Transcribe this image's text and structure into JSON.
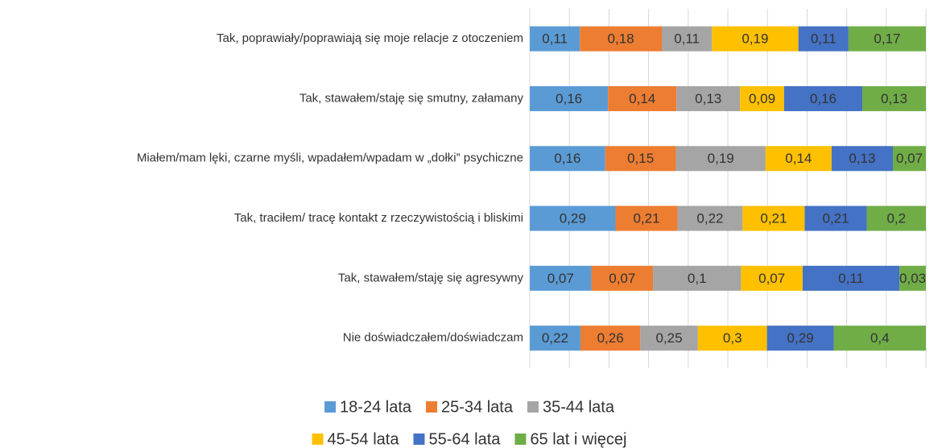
{
  "chart_data": {
    "type": "bar",
    "orientation": "horizontal",
    "stacking": "percent",
    "grid": true,
    "categories": [
      "Tak, poprawiały/poprawiają się moje relacje z otoczeniem",
      "Tak, stawałem/staję się smutny, załamany",
      "Miałem/mam lęki, czarne myśli, wpadałem/wpadam w „dołki” psychiczne",
      "Tak, traciłem/ tracę kontakt z rzeczywistością i bliskimi",
      "Tak, stawałem/staję się agresywny",
      "Nie doświadczałem/doświadczam"
    ],
    "series": [
      {
        "name": "18-24 lata",
        "color": "#5b9bd5",
        "values": [
          0.11,
          0.16,
          0.16,
          0.29,
          0.07,
          0.22
        ],
        "value_labels": [
          "0,11",
          "0,16",
          "0,16",
          "0,29",
          "0,07",
          "0,22"
        ]
      },
      {
        "name": "25-34 lata",
        "color": "#ed7d31",
        "values": [
          0.18,
          0.14,
          0.15,
          0.21,
          0.07,
          0.26
        ],
        "value_labels": [
          "0,18",
          "0,14",
          "0,15",
          "0,21",
          "0,07",
          "0,26"
        ]
      },
      {
        "name": "35-44 lata",
        "color": "#a5a5a5",
        "values": [
          0.11,
          0.13,
          0.19,
          0.22,
          0.1,
          0.25
        ],
        "value_labels": [
          "0,11",
          "0,13",
          "0,19",
          "0,22",
          "0,1",
          "0,25"
        ]
      },
      {
        "name": "45-54 lata",
        "color": "#ffc000",
        "values": [
          0.19,
          0.09,
          0.14,
          0.21,
          0.07,
          0.3
        ],
        "value_labels": [
          "0,19",
          "0,09",
          "0,14",
          "0,21",
          "0,07",
          "0,3"
        ]
      },
      {
        "name": "55-64 lata",
        "color": "#4472c4",
        "values": [
          0.11,
          0.16,
          0.13,
          0.21,
          0.11,
          0.29
        ],
        "value_labels": [
          "0,11",
          "0,16",
          "0,13",
          "0,21",
          "0,11",
          "0,29"
        ]
      },
      {
        "name": "65 lat i więcej",
        "color": "#70ad47",
        "values": [
          0.17,
          0.13,
          0.07,
          0.2,
          0.03,
          0.4
        ],
        "value_labels": [
          "0,17",
          "0,13",
          "0,07",
          "0,2",
          "0,03",
          "0,4"
        ]
      }
    ]
  }
}
